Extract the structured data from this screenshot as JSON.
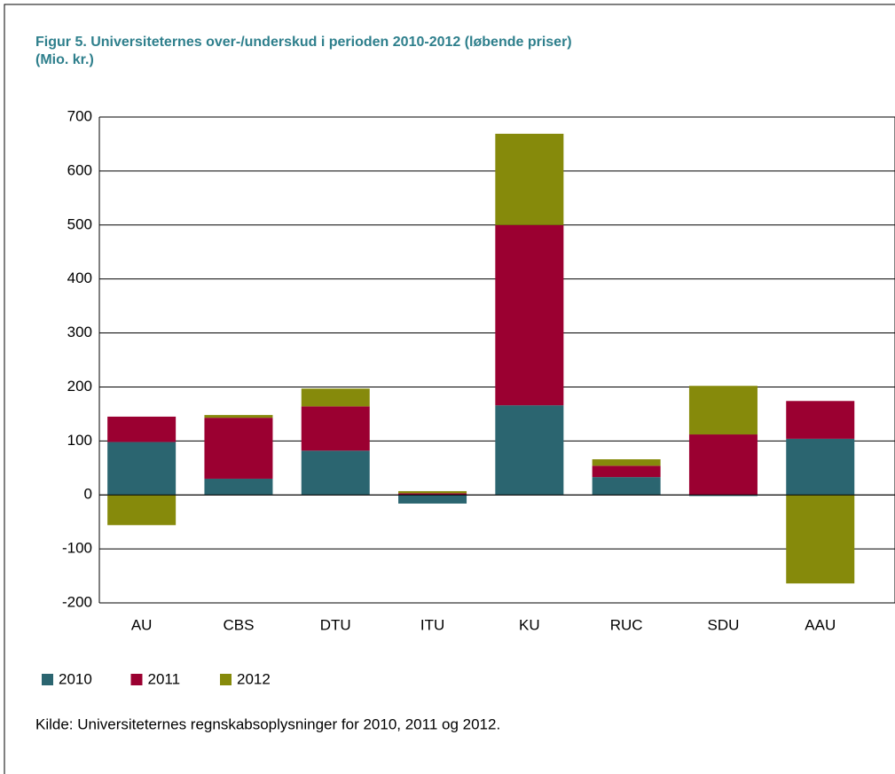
{
  "chart_data": {
    "type": "stacked_bar",
    "title": "Figur 5. Universiteternes over-/underskud i perioden 2010-2012 (løbende priser)",
    "subtitle": "(Mio. kr.)",
    "categories": [
      "AU",
      "CBS",
      "DTU",
      "ITU",
      "KU",
      "RUC",
      "SDU",
      "AAU"
    ],
    "series": [
      {
        "name": "2010",
        "color": "#2b6570",
        "values": [
          98,
          30,
          82,
          -16,
          166,
          33,
          -2,
          104
        ]
      },
      {
        "name": "2011",
        "color": "#9b0031",
        "values": [
          47,
          113,
          82,
          3,
          334,
          21,
          112,
          70
        ]
      },
      {
        "name": "2012",
        "color": "#868a0b",
        "values": [
          -56,
          5,
          33,
          4,
          169,
          12,
          90,
          -164
        ]
      }
    ],
    "ylim": [
      -200,
      700
    ],
    "yticks": [
      -200,
      -100,
      0,
      100,
      200,
      300,
      400,
      500,
      600,
      700
    ],
    "grid": true,
    "legend": "bottom-left",
    "source": "Kilde:  Universiteternes regnskabsoplysninger for 2010, 2011 og 2012."
  }
}
